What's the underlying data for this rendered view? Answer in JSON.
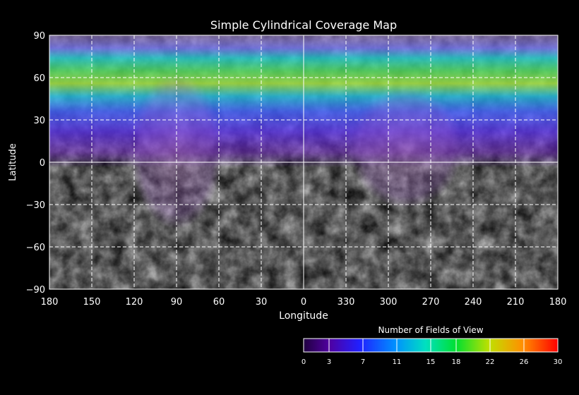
{
  "chart": {
    "title": "Simple Cylindrical Coverage Map",
    "ylabel": "Latitude",
    "xlabel": "Longitude",
    "yticks": [
      "90",
      "60",
      "30",
      "0",
      "−30",
      "−60",
      "−90"
    ],
    "xticks": [
      "180",
      "150",
      "120",
      "90",
      "60",
      "30",
      "0",
      "330",
      "300",
      "270",
      "240",
      "210",
      "180"
    ]
  },
  "colorbar": {
    "title": "Number of Fields of View",
    "ticks": [
      "0",
      "3",
      "7",
      "11",
      "15",
      "18",
      "22",
      "26",
      "30"
    ],
    "range": [
      0,
      30
    ],
    "colors": [
      "#3a0070",
      "#5a00b0",
      "#2a2aff",
      "#0090ff",
      "#00e0c0",
      "#00e040",
      "#c0e000",
      "#ff9000",
      "#ff0000"
    ]
  },
  "chart_data": {
    "type": "heatmap",
    "title": "Simple Cylindrical Coverage Map",
    "xlabel": "Longitude",
    "ylabel": "Latitude",
    "x_tick_labels": [
      "180",
      "150",
      "120",
      "90",
      "60",
      "30",
      "0",
      "330",
      "300",
      "270",
      "240",
      "210",
      "180"
    ],
    "y_tick_labels": [
      "90",
      "60",
      "30",
      "0",
      "-30",
      "-60",
      "-90"
    ],
    "xlim": [
      180,
      -180
    ],
    "ylim": [
      -90,
      90
    ],
    "colorbar_label": "Number of Fields of View",
    "colorbar_range": [
      0,
      30
    ],
    "grid": true,
    "coverage_bands": [
      {
        "lat_range": [
          75,
          88
        ],
        "fields": 8
      },
      {
        "lat_range": [
          55,
          75
        ],
        "fields": 15
      },
      {
        "lat_range": [
          45,
          55
        ],
        "fields": 11
      },
      {
        "lat_range": [
          30,
          45
        ],
        "fields": 5
      },
      {
        "lat_range": [
          10,
          30
        ],
        "fields": 3
      },
      {
        "lat_range": [
          -60,
          10
        ],
        "fields": 1
      }
    ]
  }
}
